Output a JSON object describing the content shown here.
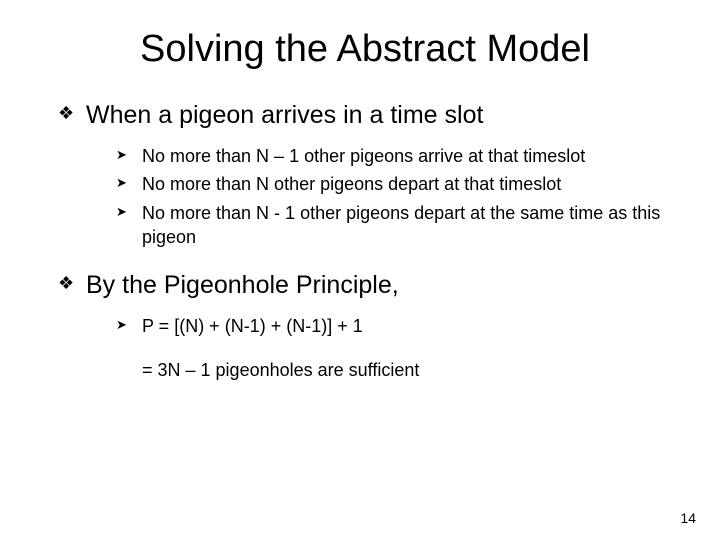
{
  "title": "Solving the Abstract Model",
  "point1": "When a pigeon arrives in a time slot",
  "sub1a": "No more than N – 1 other pigeons arrive at that timeslot",
  "sub1b": "No more than N other pigeons  depart at that timeslot",
  "sub1c": "No more than N - 1 other pigeons depart at the same time as this pigeon",
  "point2": "By the Pigeonhole Principle,",
  "sub2a": "P = [(N) + (N-1) + (N-1)] + 1",
  "formula_cont": "= 3N – 1  pigeonholes are sufficient",
  "page_number": "14"
}
